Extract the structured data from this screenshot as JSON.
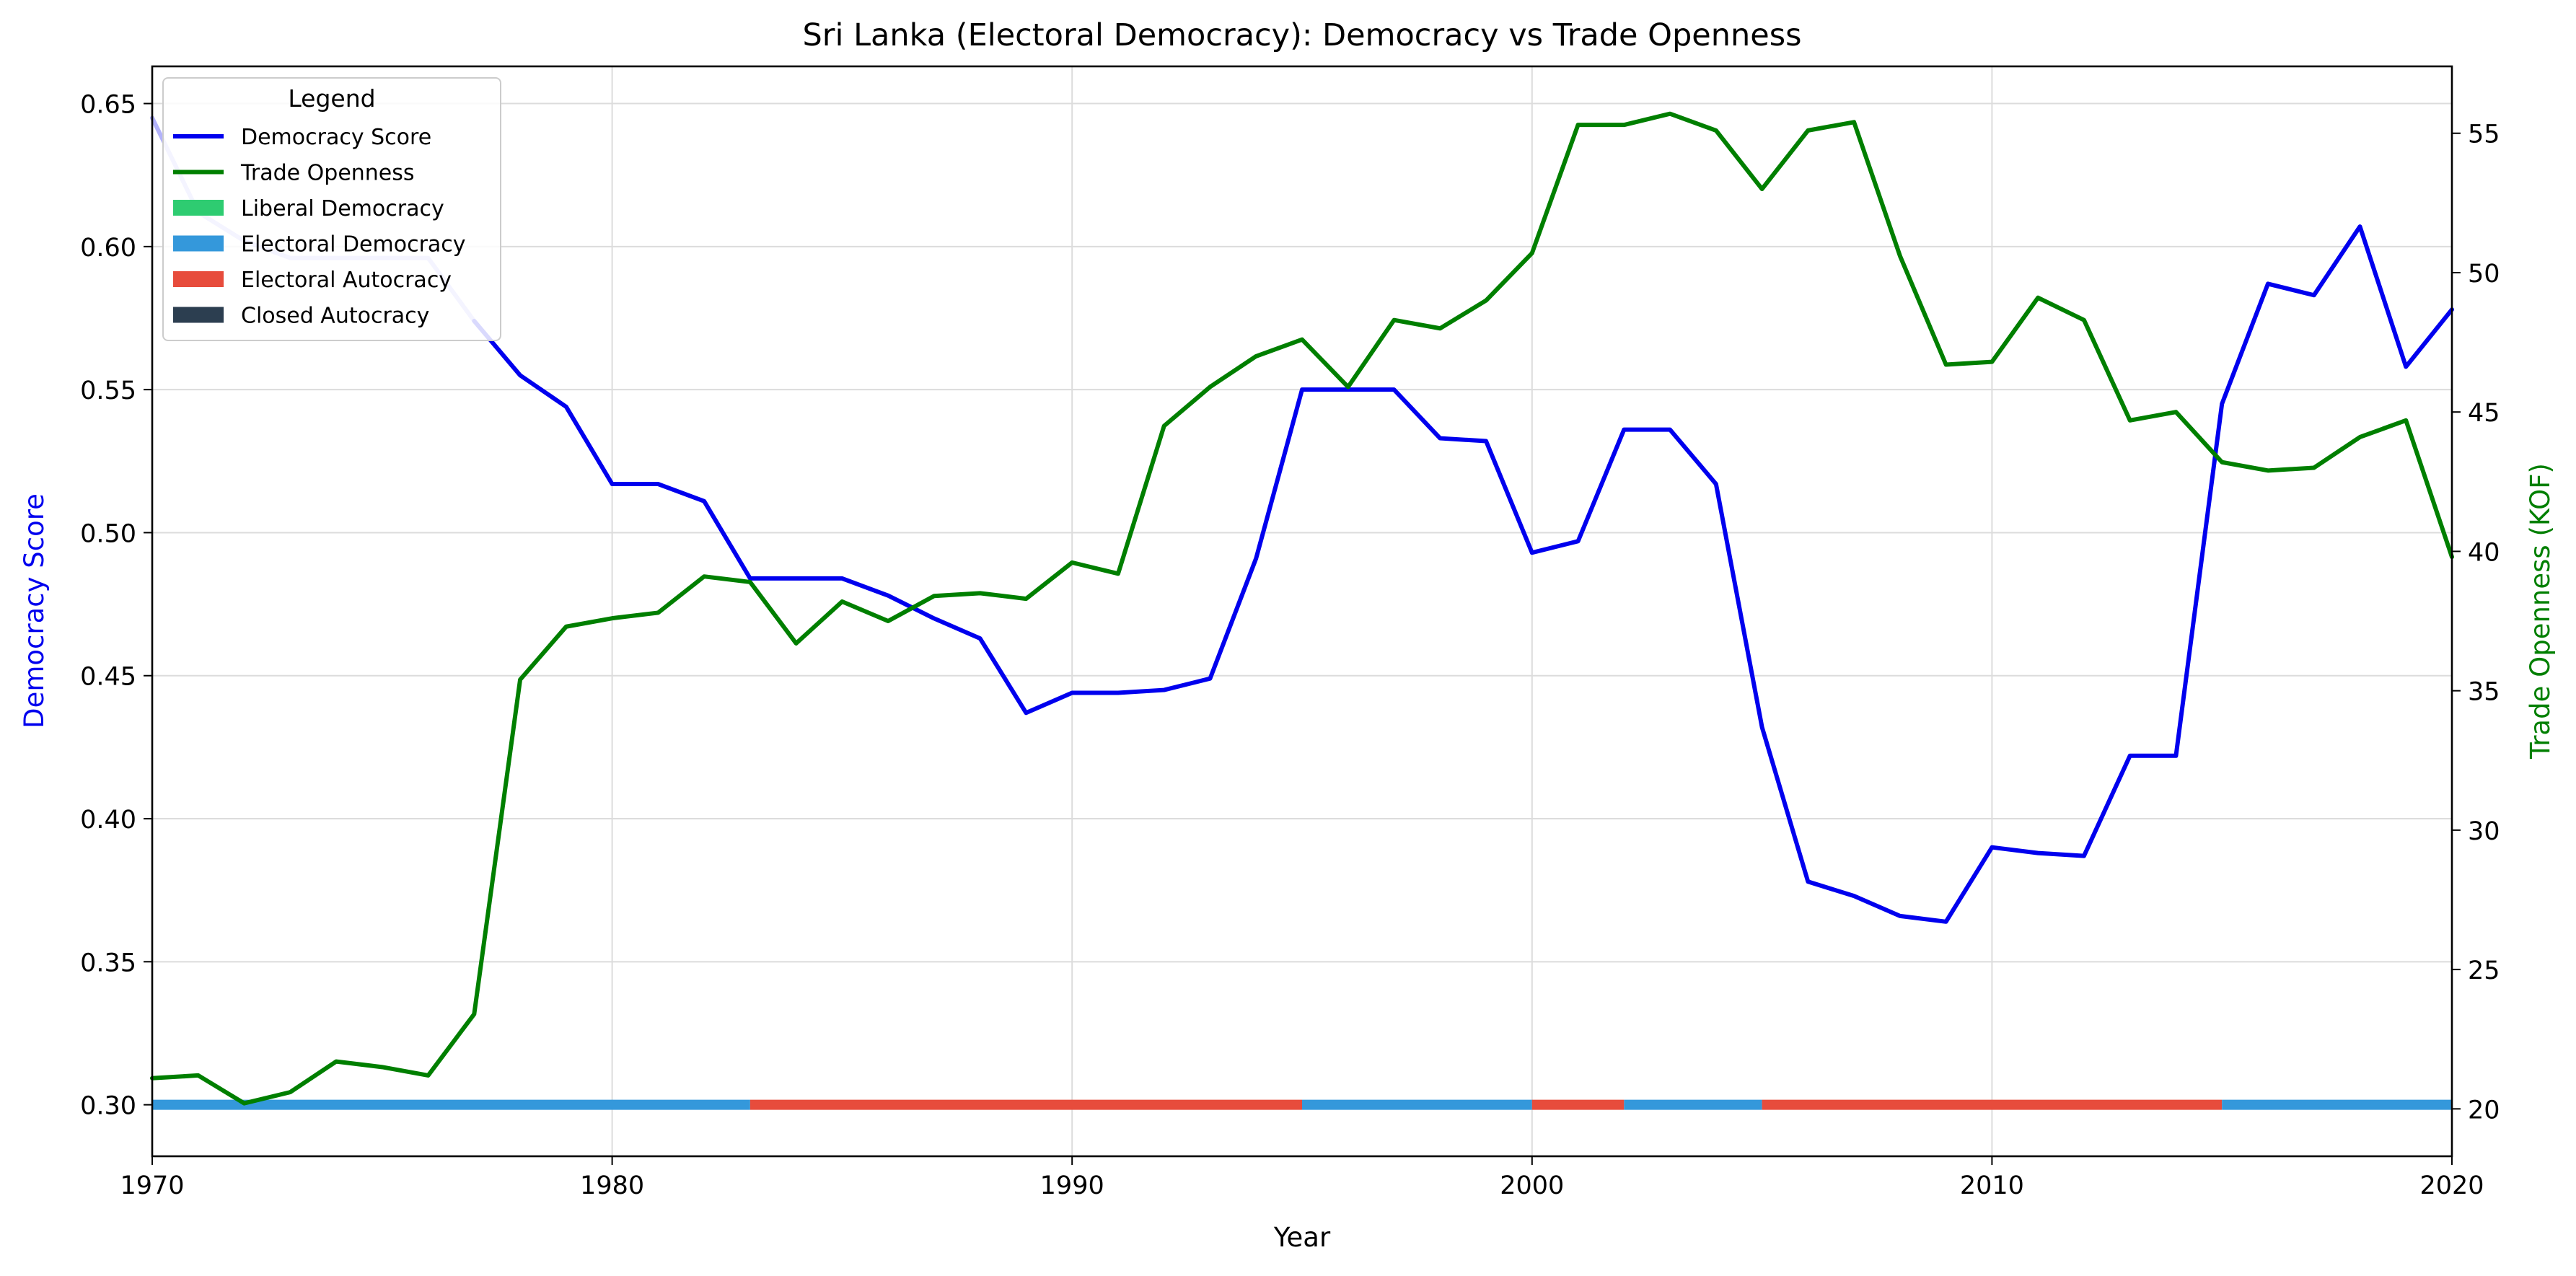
{
  "chart_data": {
    "type": "line",
    "title": "Sri Lanka (Electoral Democracy): Democracy vs Trade Openness",
    "xlabel": "Year",
    "ylabel_left": "Democracy Score",
    "ylabel_right": "Trade Openness (KOF)",
    "xlim": [
      1970,
      2020
    ],
    "ylim_left": [
      0.282,
      0.663
    ],
    "ylim_right": [
      18.3,
      57.4
    ],
    "x_ticks": [
      1970,
      1980,
      1990,
      2000,
      2010,
      2020
    ],
    "y_left_ticks": [
      "0.30",
      "0.35",
      "0.40",
      "0.45",
      "0.50",
      "0.55",
      "0.60",
      "0.65"
    ],
    "y_right_ticks": [
      "20",
      "25",
      "30",
      "35",
      "40",
      "45",
      "50",
      "55"
    ],
    "grid": true,
    "legend": {
      "title": "Legend",
      "placement": "top-left",
      "entries": [
        {
          "label": "Democracy Score",
          "kind": "line",
          "color": "#0000ee"
        },
        {
          "label": "Trade Openness",
          "kind": "line",
          "color": "#007f00"
        },
        {
          "label": "Liberal Democracy",
          "kind": "patch",
          "color": "#2ecc71"
        },
        {
          "label": "Electoral Democracy",
          "kind": "patch",
          "color": "#3498db"
        },
        {
          "label": "Electoral Autocracy",
          "kind": "patch",
          "color": "#e74c3c"
        },
        {
          "label": "Closed Autocracy",
          "kind": "patch",
          "color": "#2c3e50"
        }
      ]
    },
    "x": [
      1970,
      1971,
      1972,
      1973,
      1974,
      1975,
      1976,
      1977,
      1978,
      1979,
      1980,
      1981,
      1982,
      1983,
      1984,
      1985,
      1986,
      1987,
      1988,
      1989,
      1990,
      1991,
      1992,
      1993,
      1994,
      1995,
      1996,
      1997,
      1998,
      1999,
      2000,
      2001,
      2002,
      2003,
      2004,
      2005,
      2006,
      2007,
      2008,
      2009,
      2010,
      2011,
      2012,
      2013,
      2014,
      2015,
      2016,
      2017,
      2018,
      2019,
      2020
    ],
    "series": [
      {
        "name": "Democracy Score",
        "axis": "left",
        "color": "#0000ee",
        "values": [
          0.645,
          0.612,
          0.602,
          0.596,
          0.596,
          0.596,
          0.596,
          0.574,
          0.555,
          0.544,
          0.517,
          0.517,
          0.511,
          0.484,
          0.484,
          0.484,
          0.478,
          0.47,
          0.463,
          0.437,
          0.444,
          0.444,
          0.445,
          0.449,
          0.491,
          0.55,
          0.55,
          0.55,
          0.533,
          0.532,
          0.493,
          0.497,
          0.536,
          0.536,
          0.517,
          0.432,
          0.378,
          0.373,
          0.366,
          0.364,
          0.39,
          0.388,
          0.387,
          0.422,
          0.422,
          0.545,
          0.587,
          0.583,
          0.607,
          0.558,
          0.578
        ],
        "faded_until": 1977
      },
      {
        "name": "Trade Openness",
        "axis": "right",
        "color": "#007f00",
        "values": [
          21.1,
          21.2,
          20.2,
          20.6,
          21.7,
          21.5,
          21.2,
          23.4,
          35.4,
          37.3,
          37.6,
          37.8,
          39.1,
          38.9,
          36.7,
          38.2,
          37.5,
          38.4,
          38.5,
          38.3,
          39.6,
          39.2,
          44.5,
          45.9,
          47.0,
          47.6,
          45.9,
          48.3,
          48.0,
          49.0,
          50.7,
          55.3,
          55.3,
          55.7,
          55.1,
          53.0,
          55.1,
          55.4,
          50.6,
          46.7,
          46.8,
          49.1,
          48.3,
          44.7,
          45.0,
          43.2,
          42.9,
          43.0,
          44.1,
          44.7,
          39.8
        ]
      }
    ],
    "regime_bands": [
      {
        "start": 1970,
        "end": 1983,
        "regime": "Electoral Democracy",
        "color": "#3498db"
      },
      {
        "start": 1983,
        "end": 1995,
        "regime": "Electoral Autocracy",
        "color": "#e74c3c"
      },
      {
        "start": 1995,
        "end": 2000,
        "regime": "Electoral Democracy",
        "color": "#3498db"
      },
      {
        "start": 2000,
        "end": 2002,
        "regime": "Electoral Autocracy",
        "color": "#e74c3c"
      },
      {
        "start": 2002,
        "end": 2005,
        "regime": "Electoral Democracy",
        "color": "#3498db"
      },
      {
        "start": 2005,
        "end": 2015,
        "regime": "Electoral Autocracy",
        "color": "#e74c3c"
      },
      {
        "start": 2015,
        "end": 2020,
        "regime": "Electoral Democracy",
        "color": "#3498db"
      }
    ],
    "regime_band_level": 0.3
  }
}
